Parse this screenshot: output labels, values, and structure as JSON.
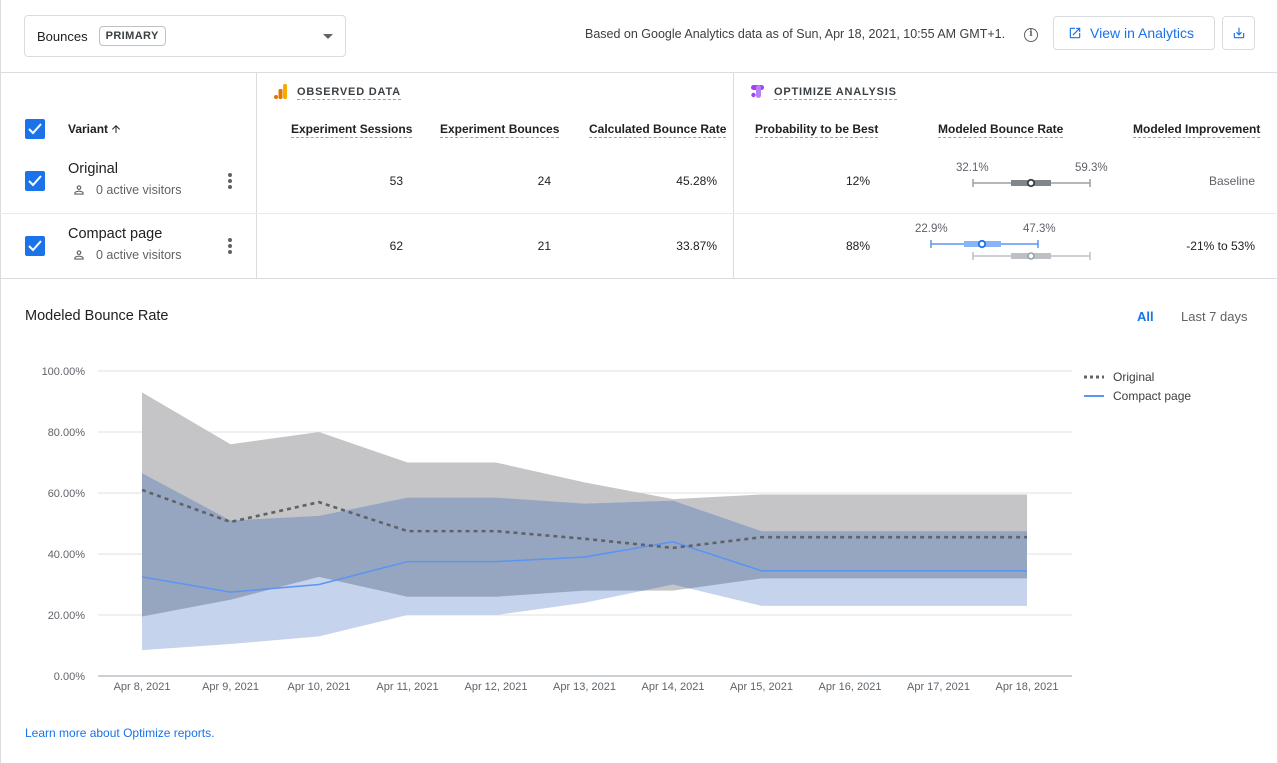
{
  "header": {
    "metric_label": "Bounces",
    "metric_badge": "PRIMARY",
    "based_on": "Based on Google Analytics data as of Sun, Apr 18, 2021, 10:55 AM GMT+1.",
    "view_in_analytics": "View in Analytics"
  },
  "table": {
    "variant_header": "Variant",
    "observed_title": "OBSERVED DATA",
    "optimize_title": "OPTIMIZE ANALYSIS",
    "columns": {
      "sessions": "Experiment Sessions",
      "bounces": "Experiment Bounces",
      "rate": "Calculated Bounce Rate",
      "prob": "Probability to be Best",
      "modeled": "Modeled Bounce Rate",
      "improvement": "Modeled Improvement"
    },
    "rows": [
      {
        "name": "Original",
        "visitors": "0 active visitors",
        "sessions": "53",
        "bounces": "24",
        "rate": "45.28%",
        "prob": "12%",
        "range_low": "32.1%",
        "range_high": "59.3%",
        "improvement": "Baseline"
      },
      {
        "name": "Compact page",
        "visitors": "0 active visitors",
        "sessions": "62",
        "bounces": "21",
        "rate": "33.87%",
        "prob": "88%",
        "range_low": "22.9%",
        "range_high": "47.3%",
        "improvement": "-21% to 53%"
      }
    ]
  },
  "chart_section": {
    "title": "Modeled Bounce Rate",
    "tab_all": "All",
    "tab_7": "Last 7 days",
    "learn_more": "Learn more about Optimize reports."
  },
  "colors": {
    "accent": "#1a73e8",
    "original_band": "#c5c5c7",
    "compact_band": "#c6d3ec",
    "overlap_band": "#97a6c0",
    "compact_line": "#5b95f0",
    "original_line": "#5f6368"
  },
  "icons": [
    "check-icon",
    "person-icon",
    "more-vert-icon",
    "open-in-new-icon",
    "download-icon",
    "info-icon",
    "analytics-logo",
    "optimize-logo",
    "arrow-up-icon"
  ],
  "chart_data": {
    "type": "line",
    "x": [
      "Apr 8, 2021",
      "Apr 9, 2021",
      "Apr 10, 2021",
      "Apr 11, 2021",
      "Apr 12, 2021",
      "Apr 13, 2021",
      "Apr 14, 2021",
      "Apr 15, 2021",
      "Apr 16, 2021",
      "Apr 17, 2021",
      "Apr 18, 2021"
    ],
    "y_ticks": [
      "0.00%",
      "20.00%",
      "40.00%",
      "60.00%",
      "80.00%",
      "100.00%"
    ],
    "ylim": [
      0,
      100
    ],
    "grid": true,
    "legend_position": "right",
    "series": [
      {
        "name": "Original",
        "style": "dotted",
        "values": [
          61,
          50.5,
          57,
          47.5,
          47.5,
          45,
          42,
          45.5,
          45.5,
          45.5,
          45.5
        ],
        "upper": [
          93,
          76,
          80,
          70,
          70,
          63.5,
          58,
          59.5,
          59.5,
          59.5,
          59.5
        ],
        "lower": [
          19.5,
          25,
          32.5,
          26,
          26,
          28,
          28,
          32,
          32,
          32,
          32
        ]
      },
      {
        "name": "Compact page",
        "style": "solid",
        "values": [
          32.5,
          27.5,
          30,
          37.5,
          37.5,
          39,
          44,
          34.5,
          34.5,
          34.5,
          34.5
        ],
        "upper": [
          66.5,
          51,
          52.5,
          58.5,
          58.5,
          56.5,
          57.5,
          47.5,
          47.5,
          47.5,
          47.5
        ],
        "lower": [
          8.5,
          10.5,
          13,
          20,
          20,
          24,
          30,
          23,
          23,
          23,
          23
        ]
      }
    ]
  }
}
